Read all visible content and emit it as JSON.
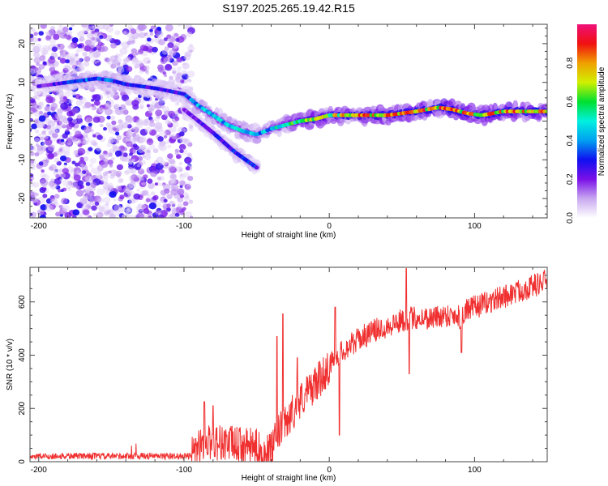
{
  "chart_data": [
    {
      "type": "heatmap",
      "title": "S197.2025.265.19.42.R15",
      "xlabel": "Height of straight line (km)",
      "ylabel": "Frequency (Hz)",
      "xlim": [
        -206,
        150
      ],
      "ylim": [
        -25,
        25
      ],
      "xticks": [
        -200,
        -100,
        0,
        100
      ],
      "yticks": [
        -20,
        -10,
        0,
        10,
        20
      ],
      "colorbar": {
        "label": "Normalized spectral amplitude",
        "range": [
          0.0,
          1.0
        ],
        "ticks": [
          "0.0",
          "0.2",
          "0.4",
          "0.6",
          "0.8"
        ],
        "colormap": [
          "#ffffff",
          "#c8a8f0",
          "#7a10e8",
          "#1010f0",
          "#00a0f0",
          "#00f0e0",
          "#00e030",
          "#d0f000",
          "#f0a000",
          "#f01010",
          "#f0107a"
        ]
      },
      "ridge": [
        {
          "x": -200,
          "f": 9,
          "amp": 0.25
        },
        {
          "x": -180,
          "f": 10,
          "amp": 0.35
        },
        {
          "x": -170,
          "f": 10.5,
          "amp": 0.45
        },
        {
          "x": -160,
          "f": 11,
          "amp": 0.4
        },
        {
          "x": -150,
          "f": 10.5,
          "amp": 0.45
        },
        {
          "x": -140,
          "f": 9.5,
          "amp": 0.4
        },
        {
          "x": -120,
          "f": 8.5,
          "amp": 0.3
        },
        {
          "x": -100,
          "f": 7,
          "amp": 0.35
        },
        {
          "x": -90,
          "f": 4,
          "amp": 0.5
        },
        {
          "x": -80,
          "f": 1.5,
          "amp": 0.55
        },
        {
          "x": -70,
          "f": -1,
          "amp": 0.55
        },
        {
          "x": -60,
          "f": -2.5,
          "amp": 0.55
        },
        {
          "x": -50,
          "f": -3.5,
          "amp": 0.5
        },
        {
          "x": -40,
          "f": -2,
          "amp": 0.55
        },
        {
          "x": -30,
          "f": -1,
          "amp": 0.6
        },
        {
          "x": -20,
          "f": 0,
          "amp": 0.75
        },
        {
          "x": -10,
          "f": 0.5,
          "amp": 0.85
        },
        {
          "x": 0,
          "f": 1.5,
          "amp": 0.8
        },
        {
          "x": 20,
          "f": 1.5,
          "amp": 0.95
        },
        {
          "x": 40,
          "f": 1.5,
          "amp": 0.9
        },
        {
          "x": 60,
          "f": 2.5,
          "amp": 0.95
        },
        {
          "x": 75,
          "f": 3.5,
          "amp": 0.95
        },
        {
          "x": 85,
          "f": 3,
          "amp": 0.95
        },
        {
          "x": 95,
          "f": 2,
          "amp": 0.9
        },
        {
          "x": 105,
          "f": 1.5,
          "amp": 0.9
        },
        {
          "x": 120,
          "f": 2.5,
          "amp": 0.95
        },
        {
          "x": 150,
          "f": 2.5,
          "amp": 0.95
        }
      ],
      "secondary_ridge": [
        {
          "x": -100,
          "f": 3,
          "amp": 0.25
        },
        {
          "x": -80,
          "f": -3,
          "amp": 0.3
        },
        {
          "x": -65,
          "f": -8,
          "amp": 0.35
        },
        {
          "x": -50,
          "f": -12,
          "amp": 0.35
        }
      ],
      "noise_region_x": [
        -206,
        -95
      ]
    },
    {
      "type": "line",
      "xlabel": "Height of straight line (km)",
      "ylabel": "SNR (10 * v/v)",
      "xlim": [
        -206,
        150
      ],
      "ylim": [
        0,
        730
      ],
      "xticks": [
        -200,
        -100,
        0,
        100
      ],
      "yticks": [
        0,
        200,
        400,
        600
      ],
      "line_color": "#f03030",
      "series": [
        {
          "name": "SNR",
          "x": [
            -206,
            -190,
            -170,
            -150,
            -130,
            -110,
            -95,
            -90,
            -85,
            -80,
            -70,
            -60,
            -50,
            -45,
            -40,
            -35,
            -30,
            -25,
            -20,
            -15,
            -10,
            -5,
            0,
            5,
            10,
            20,
            30,
            40,
            50,
            55,
            60,
            70,
            80,
            90,
            95,
            100,
            110,
            120,
            130,
            140,
            150
          ],
          "y": [
            20,
            20,
            22,
            20,
            22,
            20,
            22,
            50,
            70,
            75,
            70,
            60,
            55,
            30,
            40,
            110,
            140,
            190,
            230,
            260,
            290,
            320,
            360,
            390,
            420,
            460,
            490,
            510,
            530,
            540,
            540,
            540,
            550,
            550,
            570,
            580,
            600,
            620,
            640,
            660,
            680
          ]
        }
      ],
      "spikes": [
        {
          "x": -86,
          "y": 225
        },
        {
          "x": -80,
          "y": 210
        },
        {
          "x": -36,
          "y": 470
        },
        {
          "x": -32,
          "y": 555
        },
        {
          "x": -22,
          "y": 390
        },
        {
          "x": 4,
          "y": 580
        },
        {
          "x": 7,
          "y": 100
        },
        {
          "x": 53,
          "y": 725
        },
        {
          "x": 55,
          "y": 330
        },
        {
          "x": 90,
          "y": 500
        },
        {
          "x": 91,
          "y": 410
        }
      ]
    }
  ]
}
